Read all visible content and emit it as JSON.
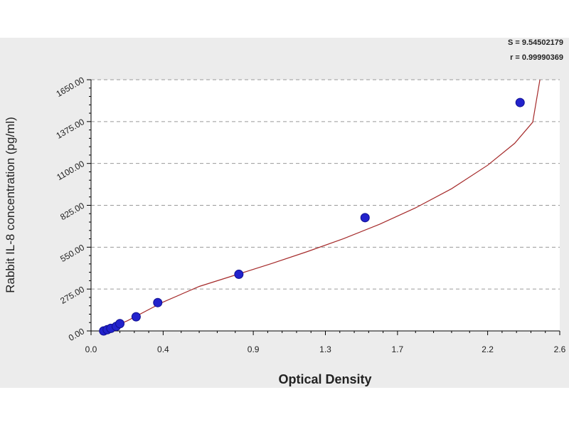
{
  "chart_data": {
    "type": "scatter",
    "title": "",
    "xlabel": "Optical Density",
    "ylabel": "Rabbit IL-8  concentration (pg/ml)",
    "xlim": [
      0.0,
      2.6
    ],
    "ylim": [
      0.0,
      1650.0
    ],
    "x_ticks": [
      0.0,
      0.4,
      0.9,
      1.3,
      1.7,
      2.2,
      2.6
    ],
    "x_tick_labels": [
      "0.0",
      "0.4",
      "0.9",
      "1.3",
      "1.7",
      "2.2",
      "2.6"
    ],
    "y_ticks": [
      0,
      275,
      550,
      825,
      1100,
      1375,
      1650
    ],
    "y_tick_labels": [
      "0.00",
      "275.00",
      "550.00",
      "825.00",
      "1100.00",
      "1375.00",
      "1650.00"
    ],
    "grid": "horizontal dashed",
    "series": [
      {
        "type": "scatter",
        "color": "#2222cc",
        "x": [
          0.07,
          0.09,
          0.11,
          0.14,
          0.16,
          0.25,
          0.37,
          0.82,
          1.52,
          2.38
        ],
        "y": [
          0,
          8,
          17,
          30,
          48,
          93,
          186,
          372,
          744,
          1500
        ]
      },
      {
        "type": "line",
        "color": "#a52a2a",
        "x": [
          0.06,
          0.2,
          0.4,
          0.6,
          0.8,
          1.0,
          1.2,
          1.4,
          1.6,
          1.8,
          2.0,
          2.2,
          2.35,
          2.45,
          2.49
        ],
        "y": [
          0,
          66,
          190,
          292,
          367,
          442,
          521,
          606,
          700,
          808,
          934,
          1088,
          1232,
          1371,
          1650
        ]
      }
    ],
    "stats_lines": [
      "S = 9.54502179",
      "r = 0.99990369"
    ]
  }
}
